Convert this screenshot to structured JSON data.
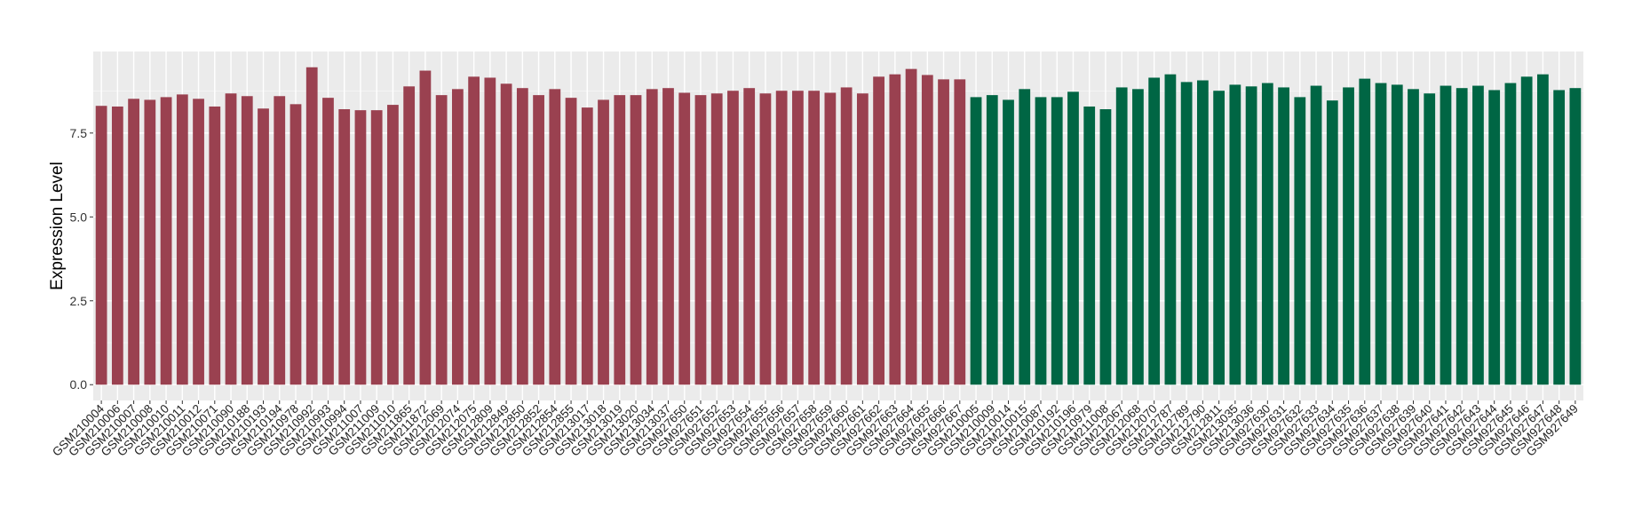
{
  "chart_data": {
    "type": "bar",
    "title": "",
    "xlabel": "",
    "ylabel": "Expression Level",
    "ylim": [
      -0.47,
      9.93
    ],
    "yticks": [
      0,
      2.5,
      5,
      7.5
    ],
    "ytick_labels": [
      "0.0",
      "2.5",
      "5.0",
      "7.5"
    ],
    "grid": true,
    "legend": "none",
    "group_colors": [
      "#9A4150",
      "#006644"
    ],
    "categories": [
      "GSM210004",
      "GSM210006",
      "GSM210007",
      "GSM210008",
      "GSM210010",
      "GSM210011",
      "GSM210012",
      "GSM210071",
      "GSM210090",
      "GSM210188",
      "GSM210193",
      "GSM210194",
      "GSM210978",
      "GSM210992",
      "GSM210993",
      "GSM210994",
      "GSM211007",
      "GSM211009",
      "GSM211010",
      "GSM211865",
      "GSM211872",
      "GSM212069",
      "GSM212074",
      "GSM212075",
      "GSM212809",
      "GSM212849",
      "GSM212850",
      "GSM212852",
      "GSM212854",
      "GSM212855",
      "GSM213017",
      "GSM213018",
      "GSM213019",
      "GSM213020",
      "GSM213034",
      "GSM213037",
      "GSM927650",
      "GSM927651",
      "GSM927652",
      "GSM927653",
      "GSM927654",
      "GSM927655",
      "GSM927656",
      "GSM927657",
      "GSM927658",
      "GSM927659",
      "GSM927660",
      "GSM927661",
      "GSM927662",
      "GSM927663",
      "GSM927664",
      "GSM927665",
      "GSM927666",
      "GSM927667",
      "GSM210005",
      "GSM210009",
      "GSM210014",
      "GSM210015",
      "GSM210087",
      "GSM210192",
      "GSM210196",
      "GSM210979",
      "GSM211008",
      "GSM212067",
      "GSM212068",
      "GSM212070",
      "GSM212787",
      "GSM212789",
      "GSM212790",
      "GSM212811",
      "GSM213035",
      "GSM213036",
      "GSM927630",
      "GSM927631",
      "GSM927632",
      "GSM927633",
      "GSM927634",
      "GSM927635",
      "GSM927636",
      "GSM927637",
      "GSM927638",
      "GSM927639",
      "GSM927640",
      "GSM927641",
      "GSM927642",
      "GSM927643",
      "GSM927644",
      "GSM927645",
      "GSM927646",
      "GSM927647",
      "GSM927648",
      "GSM927649"
    ],
    "values": [
      8.31,
      8.29,
      8.52,
      8.49,
      8.57,
      8.65,
      8.52,
      8.29,
      8.68,
      8.6,
      8.23,
      8.6,
      8.36,
      9.46,
      8.55,
      8.21,
      8.18,
      8.18,
      8.34,
      8.89,
      9.36,
      8.63,
      8.81,
      9.18,
      9.15,
      8.97,
      8.84,
      8.63,
      8.81,
      8.55,
      8.26,
      8.49,
      8.63,
      8.63,
      8.81,
      8.84,
      8.7,
      8.63,
      8.68,
      8.76,
      8.84,
      8.68,
      8.76,
      8.76,
      8.76,
      8.7,
      8.86,
      8.68,
      9.18,
      9.25,
      9.41,
      9.23,
      9.1,
      9.1,
      8.57,
      8.63,
      8.49,
      8.81,
      8.57,
      8.57,
      8.73,
      8.29,
      8.21,
      8.86,
      8.81,
      9.15,
      9.25,
      9.02,
      9.07,
      8.76,
      8.94,
      8.89,
      8.99,
      8.86,
      8.57,
      8.91,
      8.47,
      8.86,
      9.12,
      8.99,
      8.94,
      8.81,
      8.68,
      8.91,
      8.84,
      8.91,
      8.78,
      8.99,
      9.18,
      9.25,
      8.78,
      8.84
    ],
    "groups": [
      0,
      0,
      0,
      0,
      0,
      0,
      0,
      0,
      0,
      0,
      0,
      0,
      0,
      0,
      0,
      0,
      0,
      0,
      0,
      0,
      0,
      0,
      0,
      0,
      0,
      0,
      0,
      0,
      0,
      0,
      0,
      0,
      0,
      0,
      0,
      0,
      0,
      0,
      0,
      0,
      0,
      0,
      0,
      0,
      0,
      0,
      0,
      0,
      0,
      0,
      0,
      0,
      0,
      0,
      1,
      1,
      1,
      1,
      1,
      1,
      1,
      1,
      1,
      1,
      1,
      1,
      1,
      1,
      1,
      1,
      1,
      1,
      1,
      1,
      1,
      1,
      1,
      1,
      1,
      1,
      1,
      1,
      1,
      1,
      1,
      1,
      1,
      1,
      1,
      1,
      1,
      1
    ]
  }
}
